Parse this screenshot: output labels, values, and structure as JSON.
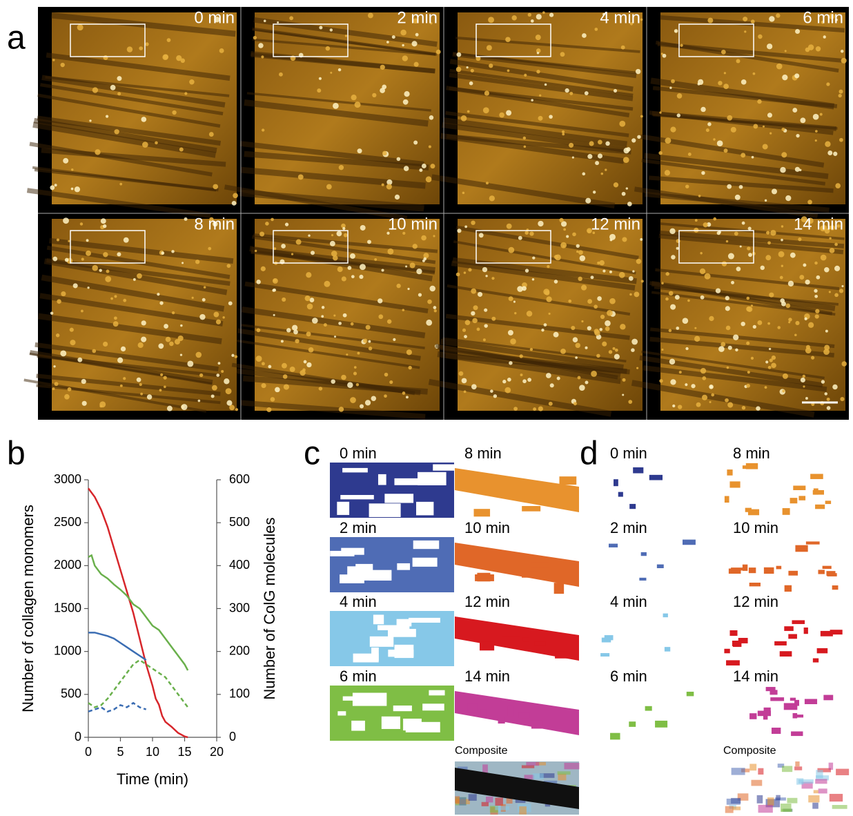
{
  "panels": {
    "a": {
      "label": "a",
      "frames": [
        "0 min",
        "2 min",
        "4 min",
        "6 min",
        "8 min",
        "10 min",
        "12 min",
        "14 min"
      ]
    },
    "b": {
      "label": "b"
    },
    "c": {
      "label": "c",
      "frames": [
        "0 min",
        "2 min",
        "4 min",
        "6 min",
        "8 min",
        "10 min",
        "12 min",
        "14 min"
      ],
      "composite": "Composite"
    },
    "d": {
      "label": "d",
      "frames": [
        "0 min",
        "2 min",
        "4 min",
        "6 min",
        "8 min",
        "10 min",
        "12 min",
        "14 min"
      ],
      "composite": "Composite"
    }
  },
  "chart_data": {
    "type": "line",
    "x_label": "Time (min)",
    "y_label": "Number of collagen monomers",
    "y2_label": "Number of ColG molecules",
    "xlim": [
      0,
      20
    ],
    "xticks": [
      0,
      5,
      10,
      15,
      20
    ],
    "ylim": [
      0,
      3000
    ],
    "yticks": [
      0,
      500,
      1000,
      1500,
      2000,
      2500,
      3000
    ],
    "y2lim": [
      0,
      600
    ],
    "y2ticks": [
      0,
      100,
      200,
      300,
      400,
      500,
      600
    ],
    "series": [
      {
        "color": "#d7262b",
        "dashed": false,
        "x": [
          0,
          1,
          2,
          3,
          4,
          5,
          6,
          7,
          8,
          9,
          10,
          10.5,
          11,
          11.5,
          12,
          13,
          14,
          15,
          15.5
        ],
        "values": [
          2900,
          2800,
          2650,
          2450,
          2200,
          1950,
          1700,
          1450,
          1150,
          850,
          600,
          450,
          380,
          250,
          180,
          120,
          50,
          10,
          0
        ]
      },
      {
        "color": "#6ab04c",
        "dashed": false,
        "x": [
          0,
          0.5,
          1,
          2,
          3,
          4,
          5,
          6,
          7,
          8,
          9,
          10,
          11,
          12,
          13,
          14,
          15,
          15.5
        ],
        "values": [
          2100,
          2120,
          2000,
          1900,
          1850,
          1780,
          1720,
          1650,
          1550,
          1500,
          1400,
          1300,
          1250,
          1150,
          1050,
          950,
          850,
          780
        ]
      },
      {
        "color": "#3b6db3",
        "dashed": false,
        "x": [
          0,
          1,
          2,
          3,
          4,
          5,
          6,
          7,
          8,
          9
        ],
        "values": [
          1220,
          1220,
          1200,
          1180,
          1150,
          1100,
          1050,
          1000,
          950,
          900
        ]
      },
      {
        "color": "#3b6db3",
        "dashed": true,
        "axis": "y2",
        "x": [
          0,
          1,
          2,
          3,
          4,
          5,
          6,
          7,
          8,
          9
        ],
        "values": [
          60,
          65,
          70,
          60,
          65,
          75,
          70,
          80,
          70,
          65
        ]
      },
      {
        "color": "#6ab04c",
        "dashed": true,
        "axis": "y2",
        "x": [
          0,
          1,
          2,
          3,
          4,
          5,
          6,
          7,
          8,
          9,
          10,
          11,
          12,
          13,
          14,
          15,
          15.5
        ],
        "values": [
          80,
          70,
          75,
          90,
          110,
          130,
          150,
          170,
          180,
          170,
          160,
          150,
          140,
          120,
          100,
          80,
          70
        ]
      }
    ]
  }
}
